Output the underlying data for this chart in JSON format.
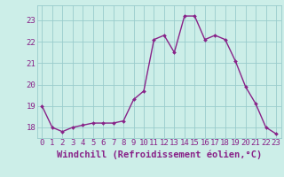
{
  "x": [
    0,
    1,
    2,
    3,
    4,
    5,
    6,
    7,
    8,
    9,
    10,
    11,
    12,
    13,
    14,
    15,
    16,
    17,
    18,
    19,
    20,
    21,
    22,
    23
  ],
  "y": [
    19.0,
    18.0,
    17.8,
    18.0,
    18.1,
    18.2,
    18.2,
    18.2,
    18.3,
    19.3,
    19.7,
    22.1,
    22.3,
    21.5,
    23.2,
    23.2,
    22.1,
    22.3,
    22.1,
    21.1,
    19.9,
    19.1,
    18.0,
    17.7
  ],
  "line_color": "#882288",
  "marker": "D",
  "marker_size": 2,
  "line_width": 1.0,
  "bg_color": "#cceee8",
  "grid_color": "#99cccc",
  "xlabel": "Windchill (Refroidissement éolien,°C)",
  "xlabel_fontsize": 7.5,
  "ylabel_ticks": [
    18,
    19,
    20,
    21,
    22,
    23
  ],
  "xtick_labels": [
    "0",
    "1",
    "2",
    "3",
    "4",
    "5",
    "6",
    "7",
    "8",
    "9",
    "10",
    "11",
    "12",
    "13",
    "14",
    "15",
    "16",
    "17",
    "18",
    "19",
    "20",
    "21",
    "22",
    "23"
  ],
  "ylim": [
    17.5,
    23.7
  ],
  "xlim": [
    -0.5,
    23.5
  ],
  "tick_fontsize": 6.5,
  "tick_color": "#882288",
  "label_color": "#882288"
}
